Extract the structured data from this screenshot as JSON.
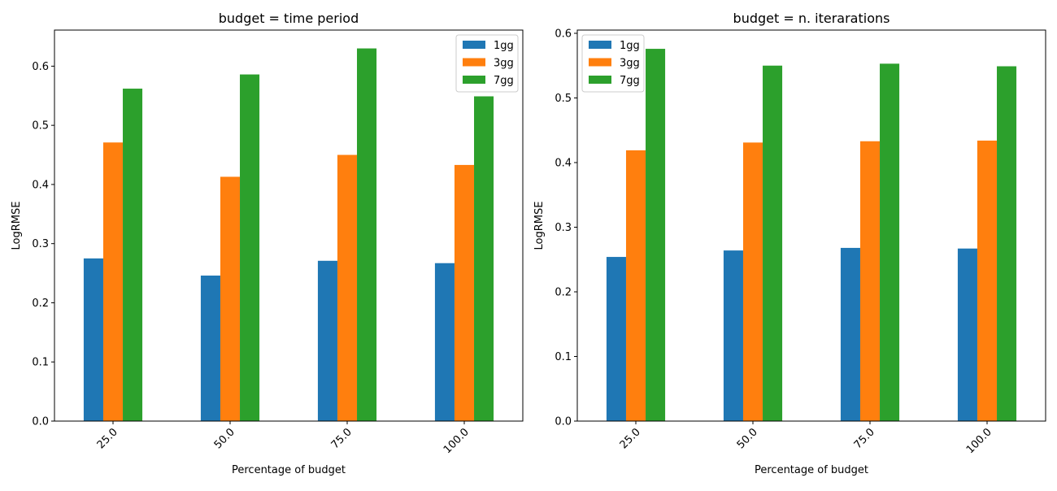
{
  "chart_data": [
    {
      "type": "bar",
      "title": "budget = time period",
      "xlabel": "Percentage of budget",
      "ylabel": "LogRMSE",
      "categories": [
        "25.0",
        "50.0",
        "75.0",
        "100.0"
      ],
      "series": [
        {
          "name": "1gg",
          "color": "#1f77b4",
          "values": [
            0.275,
            0.246,
            0.271,
            0.267
          ]
        },
        {
          "name": "3gg",
          "color": "#ff7f0e",
          "values": [
            0.471,
            0.413,
            0.45,
            0.433
          ]
        },
        {
          "name": "7gg",
          "color": "#2ca02c",
          "values": [
            0.562,
            0.586,
            0.63,
            0.549
          ]
        }
      ],
      "ylim": [
        0,
        0.661
      ],
      "yticks": [
        "0.0",
        "0.1",
        "0.2",
        "0.3",
        "0.4",
        "0.5",
        "0.6"
      ],
      "grid": false,
      "legend_position": "top-right"
    },
    {
      "type": "bar",
      "title": "budget = n. iterarations",
      "xlabel": "Percentage of budget",
      "ylabel": "LogRMSE",
      "categories": [
        "25.0",
        "50.0",
        "75.0",
        "100.0"
      ],
      "series": [
        {
          "name": "1gg",
          "color": "#1f77b4",
          "values": [
            0.254,
            0.264,
            0.268,
            0.267
          ]
        },
        {
          "name": "3gg",
          "color": "#ff7f0e",
          "values": [
            0.419,
            0.431,
            0.433,
            0.434
          ]
        },
        {
          "name": "7gg",
          "color": "#2ca02c",
          "values": [
            0.576,
            0.55,
            0.553,
            0.549
          ]
        }
      ],
      "ylim": [
        0,
        0.605
      ],
      "yticks": [
        "0.0",
        "0.1",
        "0.2",
        "0.3",
        "0.4",
        "0.5",
        "0.6"
      ],
      "grid": false,
      "legend_position": "top-left"
    }
  ]
}
